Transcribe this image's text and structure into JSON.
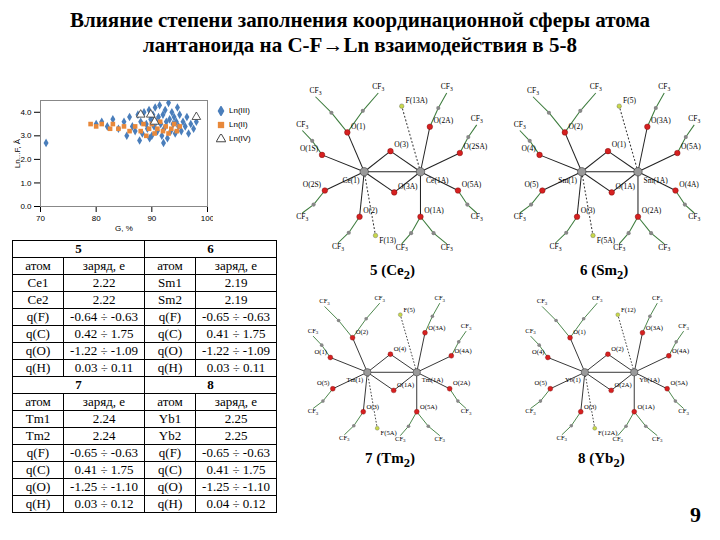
{
  "title": [
    "Влияние степени заполнения координационной сферы атома",
    "лантаноида на C-F→Ln взаимодействия в 5-8"
  ],
  "chart_data": {
    "type": "scatter",
    "x_label": "G, %",
    "y_label": "Ln...F, Å",
    "xlim": [
      70,
      100
    ],
    "xticks": [
      70,
      80,
      90,
      100
    ],
    "ylim": [
      0,
      4.5
    ],
    "yticks": [
      0,
      1,
      2,
      3,
      4
    ],
    "grid": false,
    "legend": "right",
    "series": [
      {
        "name": "Ln(III)",
        "color": "#4a7ebb",
        "marker": "diamond",
        "x": [
          71,
          80,
          81,
          82,
          83,
          84,
          85,
          85.5,
          86,
          86.5,
          87,
          87.5,
          88,
          88.3,
          88.6,
          89,
          89.2,
          89.5,
          89.8,
          90,
          90.2,
          90.4,
          90.6,
          90.8,
          91,
          91.2,
          91.4,
          91.6,
          91.8,
          92,
          92.2,
          92.4,
          92.6,
          92.8,
          93,
          93.2,
          93.4,
          93.6,
          93.8,
          94,
          94.2,
          94.4,
          94.6,
          94.8,
          95,
          95.3,
          95.6,
          96,
          96.3,
          96.6,
          97,
          97.5,
          98,
          87.8,
          89.6,
          92.1
        ],
        "values": [
          2.7,
          3.5,
          3.6,
          3.4,
          3.7,
          3.3,
          3.6,
          3.0,
          3.8,
          3.4,
          3.2,
          3.9,
          3.6,
          3.1,
          4.0,
          3.5,
          3.3,
          4.1,
          3.7,
          3.0,
          3.9,
          3.4,
          4.2,
          3.6,
          3.2,
          3.8,
          4.3,
          3.5,
          3.0,
          3.9,
          3.3,
          4.1,
          3.6,
          2.9,
          4.4,
          3.7,
          3.2,
          4.0,
          3.5,
          3.8,
          3.1,
          3.6,
          4.2,
          3.4,
          3.9,
          3.2,
          3.6,
          3.4,
          3.8,
          3.1,
          3.5,
          3.3,
          3.6,
          2.8,
          2.9,
          2.7
        ]
      },
      {
        "name": "Ln(II)",
        "color": "#e8883a",
        "marker": "square",
        "x": [
          79,
          80,
          81,
          82.5,
          83,
          84,
          85,
          86,
          87,
          88,
          88.5,
          89,
          89.5,
          90,
          90.5,
          91,
          91.5,
          92,
          92.5,
          93,
          93.5,
          94,
          94.5,
          95
        ],
        "values": [
          3.5,
          3.4,
          3.5,
          3.3,
          3.5,
          3.3,
          3.4,
          3.2,
          3.4,
          3.2,
          3.5,
          3.0,
          3.3,
          3.5,
          3.1,
          3.3,
          3.6,
          3.2,
          3.4,
          3.1,
          3.3,
          3.5,
          3.2,
          3.4
        ]
      },
      {
        "name": "Ln(IV)",
        "color": "#444444",
        "marker": "triangle-open",
        "x": [
          88,
          90.5,
          98,
          89.8
        ],
        "values": [
          3.9,
          3.6,
          3.8,
          3.9
        ]
      }
    ]
  },
  "table": {
    "groups": [
      {
        "headers": [
          "5",
          "6"
        ],
        "columns": [
          "атом",
          "заряд, e",
          "атом",
          "заряд, e"
        ],
        "rows": [
          [
            "Ce1",
            "2.22",
            "Sm1",
            "2.19"
          ],
          [
            "Ce2",
            "2.22",
            "Sm2",
            "2.19"
          ],
          [
            "q(F)",
            "-0.64 ÷ -0.63",
            "q(F)",
            "-0.65 ÷ -0.63"
          ],
          [
            "q(C)",
            "0.42 ÷ 1.75",
            "q(C)",
            "0.41 ÷ 1.75"
          ],
          [
            "q(O)",
            "-1.22 ÷ -1.09",
            "q(O)",
            "-1.22 ÷ -1.09"
          ],
          [
            "q(H)",
            "0.03 ÷ 0.11",
            "q(H)",
            "0.03 ÷ 0.11"
          ]
        ]
      },
      {
        "headers": [
          "7",
          "8"
        ],
        "columns": [
          "атом",
          "заряд, e",
          "атом",
          "заряд, e"
        ],
        "rows": [
          [
            "Tm1",
            "2.24",
            "Yb1",
            "2.25"
          ],
          [
            "Tm2",
            "2.24",
            "Yb2",
            "2.25"
          ],
          [
            "q(F)",
            "-0.65 ÷ -0.63",
            "q(F)",
            "-0.65 ÷ -0.63"
          ],
          [
            "q(C)",
            "0.41 ÷ 1.75",
            "q(C)",
            "0.41 ÷ 1.75"
          ],
          [
            "q(O)",
            "-1.25 ÷ -1.10",
            "q(O)",
            "-1.25 ÷ -1.10"
          ],
          [
            "q(H)",
            "0.03 ÷ 0.12",
            "q(H)",
            "0.04 ÷ 0.12"
          ]
        ]
      }
    ]
  },
  "group_label": [
    "CF",
    "3"
  ],
  "diagrams": [
    {
      "caption": [
        "5 (Ce",
        "2",
        ")"
      ],
      "metals": [
        "Ce(1)",
        "Ce(1A)"
      ],
      "oxygens": [
        "O(1)",
        "O(1S)",
        "O(2S)",
        "O(2)",
        "O(3)",
        "O(3A)",
        "O(2A)",
        "O(2SA)",
        "O(5A)",
        "O(1A)"
      ],
      "fluorines": [
        "F(13)",
        "F(13A)"
      ],
      "group_count": 10
    },
    {
      "caption": [
        "6 (Sm",
        "2",
        ")"
      ],
      "metals": [
        "Sm(1)",
        "Sm(1A)"
      ],
      "oxygens": [
        "O(2)",
        "O(4)",
        "O(5)",
        "O(3)",
        "O(1)",
        "O(1A)",
        "O(3A)",
        "O(5A)",
        "O(4A)",
        "O(2A)"
      ],
      "fluorines": [
        "F(5A)",
        "F(5)"
      ],
      "group_count": 10
    },
    {
      "caption": [
        "7 (Tm",
        "2",
        ")"
      ],
      "metals": [
        "Tm(1)",
        "Tm(1A)"
      ],
      "oxygens": [
        "O(2)",
        "O(1)",
        "O(5)",
        "O(3)",
        "O(4)",
        "O(1A)",
        "O(3A)",
        "O(4A)",
        "O(2A)",
        "O(5A)"
      ],
      "fluorines": [
        "F(5A)",
        "F(5)"
      ],
      "group_count": 10
    },
    {
      "caption": [
        "8 (Yb",
        "2",
        ")"
      ],
      "metals": [
        "Yb(1)",
        "Yb(1A)"
      ],
      "oxygens": [
        "O(1)",
        "O(4)",
        "O(5)",
        "O(3)",
        "O(2)",
        "O(2A)",
        "O(3A)",
        "O(4A)",
        "O(5A)",
        "O(1A)"
      ],
      "fluorines": [
        "F(12A)",
        "F(12)"
      ],
      "group_count": 10
    }
  ],
  "page_number": "9"
}
